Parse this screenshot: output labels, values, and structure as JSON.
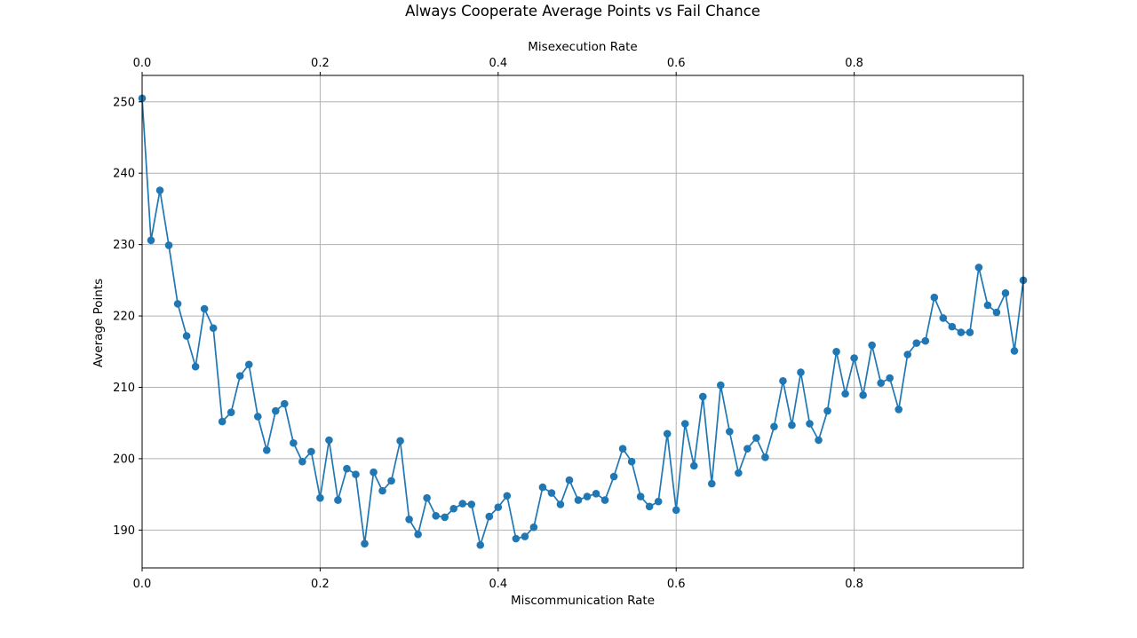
{
  "chart_data": {
    "type": "line",
    "title": "Always Cooperate Average Points vs Fail Chance",
    "xlabel": "Miscommunication Rate",
    "x2label": "Misexecution Rate",
    "ylabel": "Average Points",
    "xlim": [
      0,
      0.99
    ],
    "ylim": [
      184.7,
      253.7
    ],
    "grid": true,
    "color": "#1f77b4",
    "x_ticks": [
      0.0,
      0.2,
      0.4,
      0.6,
      0.8
    ],
    "x_tick_labels": [
      "0.0",
      "0.2",
      "0.4",
      "0.6",
      "0.8"
    ],
    "x2_ticks": [
      0.0,
      0.2,
      0.4,
      0.6,
      0.8
    ],
    "x2_tick_labels": [
      "0.0",
      "0.2",
      "0.4",
      "0.6",
      "0.8"
    ],
    "y_ticks": [
      190,
      200,
      210,
      220,
      230,
      240,
      250
    ],
    "y_tick_labels": [
      "190",
      "200",
      "210",
      "220",
      "230",
      "240",
      "250"
    ],
    "x": [
      0.0,
      0.01,
      0.02,
      0.03,
      0.04,
      0.05,
      0.06,
      0.07,
      0.08,
      0.09,
      0.1,
      0.11,
      0.12,
      0.13,
      0.14,
      0.15,
      0.16,
      0.17,
      0.18,
      0.19,
      0.2,
      0.21,
      0.22,
      0.23,
      0.24,
      0.25,
      0.26,
      0.27,
      0.28,
      0.29,
      0.3,
      0.31,
      0.32,
      0.33,
      0.34,
      0.35,
      0.36,
      0.37,
      0.38,
      0.39,
      0.4,
      0.41,
      0.42,
      0.43,
      0.44,
      0.45,
      0.46,
      0.47,
      0.48,
      0.49,
      0.5,
      0.51,
      0.52,
      0.53,
      0.54,
      0.55,
      0.56,
      0.57,
      0.58,
      0.59,
      0.6,
      0.61,
      0.62,
      0.63,
      0.64,
      0.65,
      0.66,
      0.67,
      0.68,
      0.69,
      0.7,
      0.71,
      0.72,
      0.73,
      0.74,
      0.75,
      0.76,
      0.77,
      0.78,
      0.79,
      0.8,
      0.81,
      0.82,
      0.83,
      0.84,
      0.85,
      0.86,
      0.87,
      0.88,
      0.89,
      0.9,
      0.91,
      0.92,
      0.93,
      0.94,
      0.95,
      0.96,
      0.97,
      0.98,
      0.99
    ],
    "y": [
      250.5,
      230.6,
      237.6,
      229.9,
      221.7,
      217.2,
      212.9,
      221.0,
      218.3,
      205.2,
      206.5,
      211.6,
      213.2,
      205.9,
      201.2,
      206.7,
      207.7,
      202.2,
      199.6,
      201.0,
      194.5,
      202.6,
      194.2,
      198.6,
      197.8,
      188.1,
      198.1,
      195.5,
      196.9,
      202.5,
      191.5,
      189.4,
      194.5,
      192.0,
      191.8,
      193.0,
      193.7,
      193.6,
      187.9,
      191.9,
      193.2,
      194.8,
      188.8,
      189.1,
      190.4,
      196.0,
      195.2,
      193.6,
      197.0,
      194.2,
      194.7,
      195.1,
      194.2,
      197.5,
      201.4,
      199.6,
      194.7,
      193.3,
      194.0,
      203.5,
      192.8,
      204.9,
      199.0,
      208.7,
      196.5,
      210.3,
      203.8,
      198.0,
      201.4,
      202.9,
      200.2,
      204.5,
      210.9,
      204.7,
      212.1,
      204.9,
      202.6,
      206.7,
      215.0,
      209.1,
      214.1,
      208.9,
      215.9,
      210.6,
      211.3,
      206.9,
      214.6,
      216.2,
      216.5,
      222.6,
      219.7,
      218.5,
      217.7,
      217.7,
      226.8,
      221.5,
      220.5,
      223.2,
      215.1,
      225.0
    ]
  }
}
